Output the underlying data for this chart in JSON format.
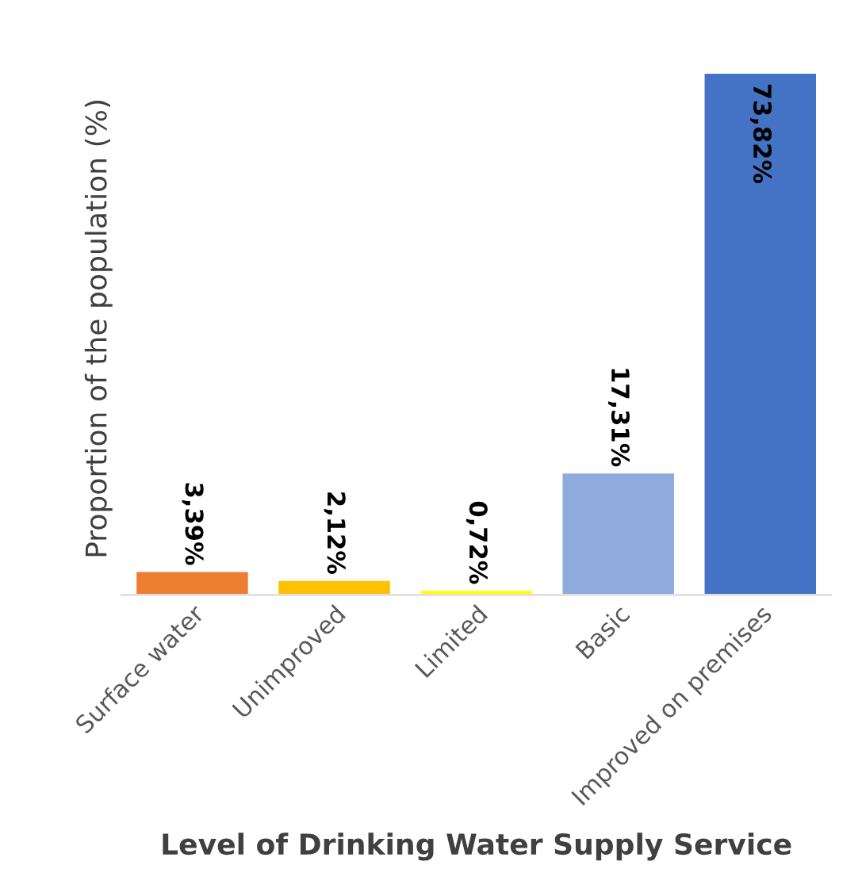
{
  "chart_data": {
    "type": "bar",
    "xlabel": "Level of Drinking Water Supply Service",
    "ylabel": "Proportion of the population (%)",
    "categories": [
      "Surface water",
      "Unimproved",
      "Limited",
      "Basic",
      "Improved on premises"
    ],
    "values": [
      3.39,
      2.12,
      0.72,
      17.31,
      73.82
    ],
    "colors": [
      "#ed7d31",
      "#ffc000",
      "#ffff00",
      "#8faadc",
      "#4472c4"
    ],
    "value_labels": [
      "3,39%",
      "2,12%",
      "0,72%",
      "17,31%",
      "73,82%"
    ],
    "grid": false,
    "legend": false
  }
}
